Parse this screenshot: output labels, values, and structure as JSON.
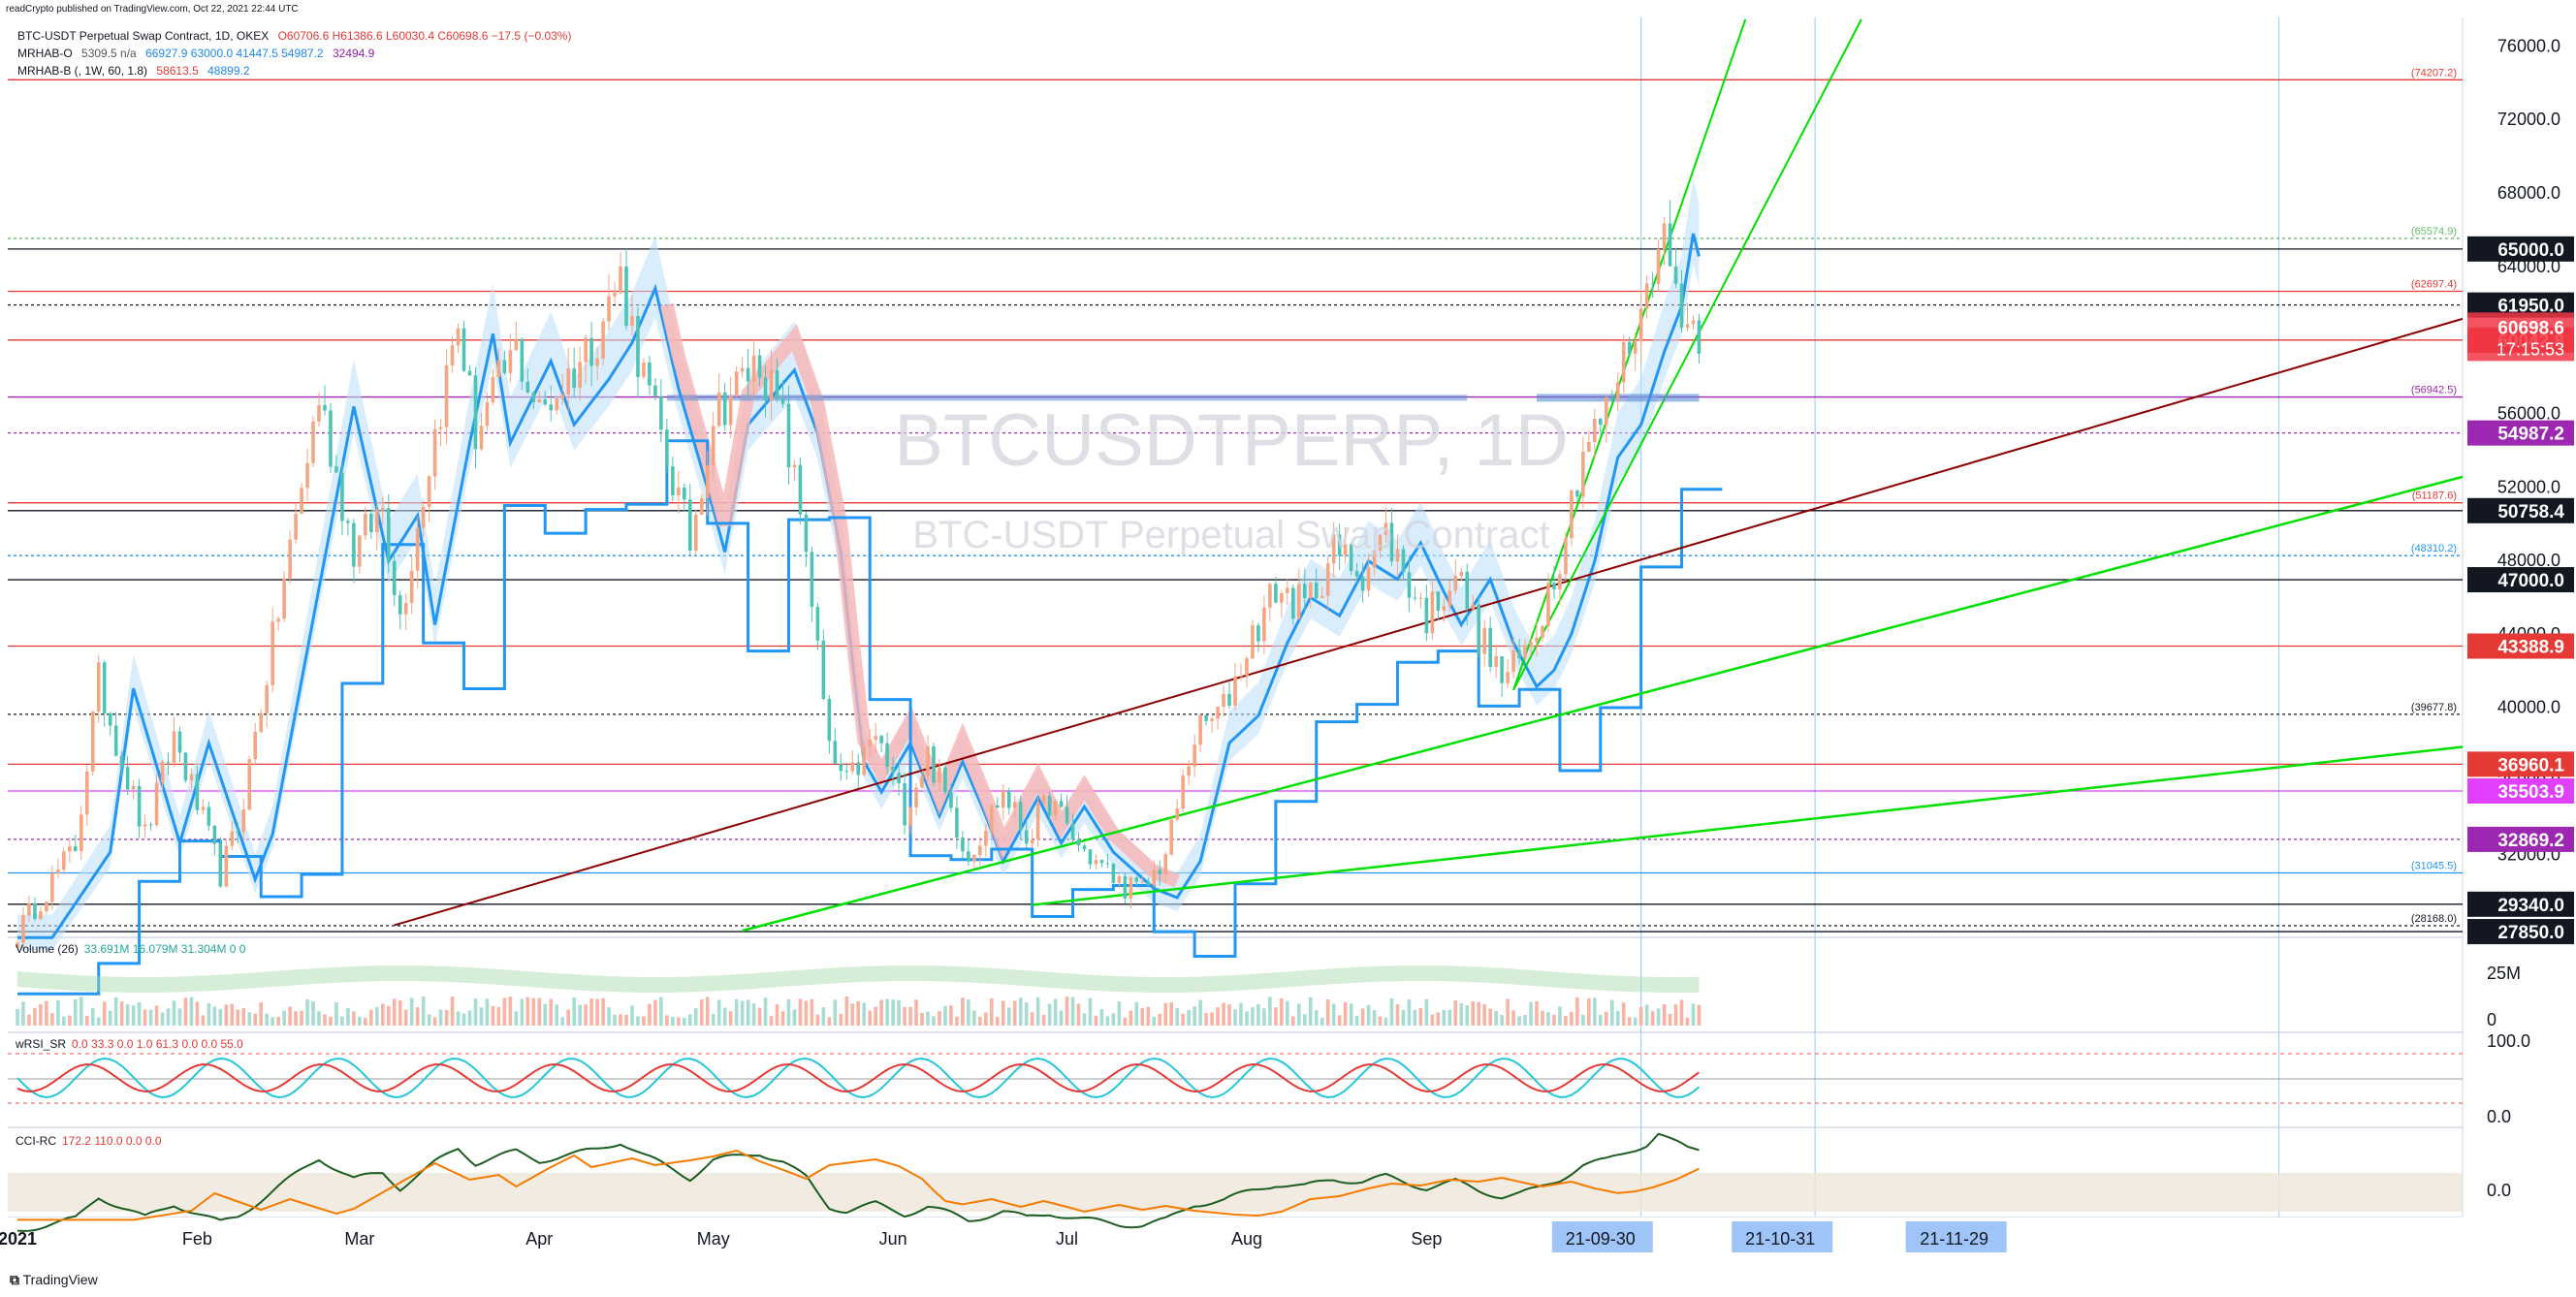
{
  "header": {
    "text": "readCrypto published on TradingView.com, Oct 22, 2021 22:44 UTC"
  },
  "legend": {
    "symbol": "BTC-USDT Perpetual Swap Contract, 1D, OKEX",
    "ohlc": "O60706.6  H61386.6  L60030.4  C60698.6  −17.5 (−0.03%)",
    "ind1_name": "MRHAB-O",
    "ind1_vals_gray": "5309.5  n/a",
    "ind1_vals_blue": "66927.9  63000.0  41447.5  54987.2",
    "ind1_vals_violet": "32494.9",
    "ind2_name": "MRHAB-B (, 1W, 60, 1.8)",
    "ind2_vals_red": "58613.5",
    "ind2_vals_blue": "48899.2"
  },
  "watermark": {
    "symbol": "BTCUSDTPERP, 1D",
    "description": "BTC-USDT Perpetual Swap Contract"
  },
  "colors": {
    "up": "#26a69a",
    "down": "#ef5350",
    "blue": "#2196f3",
    "green": "#00e000",
    "maroon": "#8b0000",
    "violet": "#9c27b0",
    "black": "#131722",
    "redlabel": "#f23645",
    "pinklabel": "#e040fb",
    "violetlabel": "#9c27b0",
    "axislabel": "#9fc5f8"
  },
  "chart_data": {
    "type": "candlestick",
    "title": "BTCUSDTPERP, 1D",
    "y_ticks": [
      76000,
      72000,
      68000,
      64000,
      60000,
      56000,
      52000,
      48000,
      44000,
      40000,
      36000,
      32000,
      28000
    ],
    "y_tick_labels": [
      "76000.0",
      "72000.0",
      "68000.0",
      "64000.0",
      "60000.0",
      "56000.0",
      "52000.0",
      "48000.0",
      "44000.0",
      "40000.0",
      "36000.0",
      "32000.0",
      "28000.0"
    ],
    "x_ticks": [
      "2021",
      "Feb",
      "Mar",
      "Apr",
      "May",
      "Jun",
      "Jul",
      "Aug",
      "Sep",
      "21-09-30",
      "21-10-31",
      "21-11-29"
    ],
    "price_path": [
      [
        0,
        27800
      ],
      [
        10,
        32500
      ],
      [
        14,
        41500
      ],
      [
        22,
        33000
      ],
      [
        27,
        38500
      ],
      [
        35,
        31000
      ],
      [
        38,
        33500
      ],
      [
        46,
        47000
      ],
      [
        52,
        57000
      ],
      [
        58,
        48500
      ],
      [
        63,
        51000
      ],
      [
        66,
        45000
      ],
      [
        72,
        55000
      ],
      [
        76,
        61000
      ],
      [
        79,
        55000
      ],
      [
        86,
        59500
      ],
      [
        90,
        56000
      ],
      [
        96,
        58500
      ],
      [
        100,
        60500
      ],
      [
        104,
        63500
      ],
      [
        108,
        58000
      ],
      [
        113,
        52500
      ],
      [
        116,
        49000
      ],
      [
        120,
        56000
      ],
      [
        124,
        57500
      ],
      [
        128,
        59000
      ],
      [
        132,
        55500
      ],
      [
        136,
        49000
      ],
      [
        138,
        43000
      ],
      [
        140,
        37500
      ],
      [
        143,
        35800
      ],
      [
        148,
        38500
      ],
      [
        153,
        34500
      ],
      [
        157,
        37500
      ],
      [
        161,
        34500
      ],
      [
        164,
        32000
      ],
      [
        170,
        35500
      ],
      [
        174,
        33000
      ],
      [
        178,
        35000
      ],
      [
        183,
        32500
      ],
      [
        190,
        30500
      ],
      [
        194,
        30000
      ],
      [
        198,
        32000
      ],
      [
        203,
        38500
      ],
      [
        208,
        40000
      ],
      [
        213,
        44000
      ],
      [
        217,
        46500
      ],
      [
        222,
        45500
      ],
      [
        227,
        48500
      ],
      [
        232,
        47500
      ],
      [
        236,
        49500
      ],
      [
        240,
        46800
      ],
      [
        243,
        45000
      ],
      [
        246,
        46500
      ],
      [
        248,
        47500
      ],
      [
        252,
        44000
      ],
      [
        256,
        41600
      ],
      [
        259,
        42500
      ],
      [
        262,
        44500
      ],
      [
        266,
        48500
      ],
      [
        270,
        54200
      ],
      [
        274,
        56000
      ],
      [
        278,
        60000
      ],
      [
        281,
        62500
      ],
      [
        283,
        66500
      ],
      [
        285,
        64000
      ],
      [
        288,
        61000
      ],
      [
        290,
        60698
      ]
    ],
    "levels": [
      {
        "value": 74207.2,
        "color": "#e53935",
        "label": "(74207.2)"
      },
      {
        "value": 65574.9,
        "color": "#66bb6a",
        "label": "(65574.9)"
      },
      {
        "value": 65000.0,
        "color": "#131722",
        "label": "65000.0"
      },
      {
        "value": 62697.4,
        "color": "#e53935",
        "label": "(62697.4)"
      },
      {
        "value": 61950.0,
        "color": "#131722",
        "label": "61950.0"
      },
      {
        "value": 60042.8,
        "color": "#e53935",
        "label": "60042.8"
      },
      {
        "value": 56942.5,
        "color": "#9c27b0",
        "label": "(56942.5)"
      },
      {
        "value": 54987.2,
        "color": "#9c27b0",
        "label": "54987.2"
      },
      {
        "value": 51187.6,
        "color": "#e53935",
        "label": "(51187.6)"
      },
      {
        "value": 50758.4,
        "color": "#131722",
        "label": "50758.4"
      },
      {
        "value": 48310.2,
        "color": "#2196f3",
        "label": "(48310.2)"
      },
      {
        "value": 47000.0,
        "color": "#131722",
        "label": "47000.0"
      },
      {
        "value": 43388.9,
        "color": "#e53935",
        "label": "43388.9"
      },
      {
        "value": 39677.8,
        "color": "#131722",
        "label": "(39677.8)"
      },
      {
        "value": 36960.1,
        "color": "#e53935",
        "label": "36960.1"
      },
      {
        "value": 35503.9,
        "color": "#e040fb",
        "label": "35503.9"
      },
      {
        "value": 32869.2,
        "color": "#9c27b0",
        "label": "32869.2"
      },
      {
        "value": 31045.5,
        "color": "#2196f3",
        "label": "(31045.5)"
      },
      {
        "value": 29340.0,
        "color": "#131722",
        "label": "29340.0"
      },
      {
        "value": 28168.0,
        "color": "#131722",
        "label": "(28168.0)"
      },
      {
        "value": 27850.0,
        "color": "#131722",
        "label": "27850.0"
      }
    ],
    "last_price": {
      "value": 60698.6,
      "label": "60698.6",
      "countdown": "17:15:53"
    },
    "volume": {
      "label": "Volume (26)",
      "vals": "33.691M  16.079M  31.304M  0  0",
      "axis": [
        "25M",
        "0"
      ]
    },
    "rsi": {
      "label": "wRSI_SR",
      "vals": "0.0  33.3  0.0  1.0  61.3  0.0  0.0  55.0",
      "axis": [
        "100.0",
        "0.0"
      ]
    },
    "cci": {
      "label": "CCI-RC",
      "vals": "172.2  110.0  0.0  0.0",
      "axis": [
        "0.0"
      ]
    }
  },
  "footer": {
    "text": "TradingView"
  }
}
